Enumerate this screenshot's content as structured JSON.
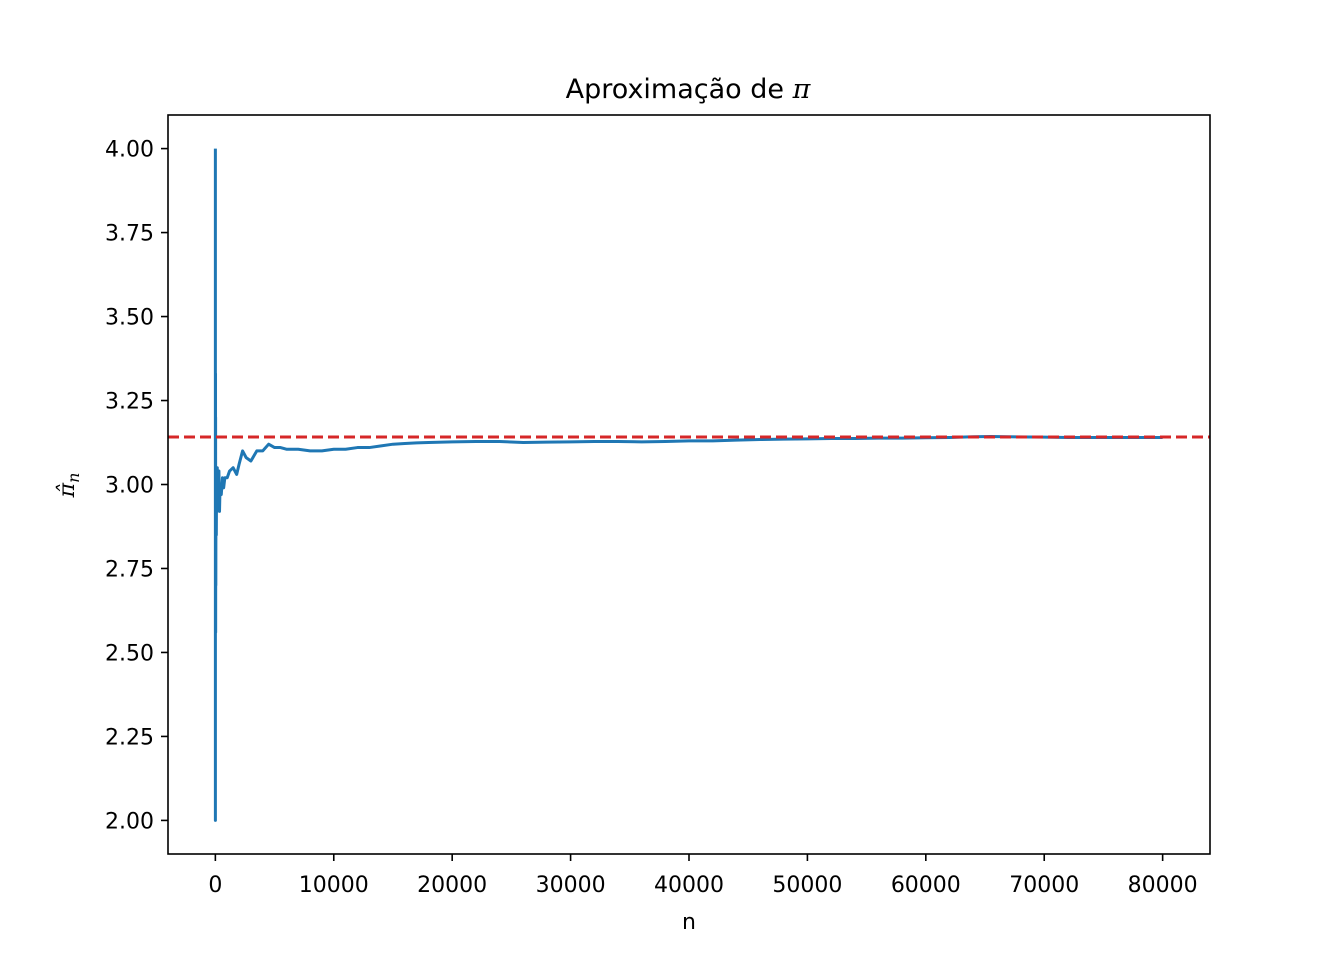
{
  "chart_data": {
    "type": "line",
    "title_prefix": "Aproximação de ",
    "title_symbol": "π",
    "xlabel": "n",
    "ylabel_base": "π̂",
    "ylabel_sub": "n",
    "xlim": [
      -4000,
      84000
    ],
    "ylim": [
      1.9,
      4.1
    ],
    "x_ticks": [
      0,
      10000,
      20000,
      30000,
      40000,
      50000,
      60000,
      70000,
      80000
    ],
    "x_tick_labels": [
      "0",
      "10000",
      "20000",
      "30000",
      "40000",
      "50000",
      "60000",
      "70000",
      "80000"
    ],
    "y_ticks": [
      2.0,
      2.25,
      2.5,
      2.75,
      3.0,
      3.25,
      3.5,
      3.75,
      4.0
    ],
    "y_tick_labels": [
      "2.00",
      "2.25",
      "2.50",
      "2.75",
      "3.00",
      "3.25",
      "3.50",
      "3.75",
      "4.00"
    ],
    "grid": false,
    "reference_line": {
      "y": 3.14159,
      "color": "#d62728",
      "style": "dashed"
    },
    "series": [
      {
        "color": "#1f77b4",
        "x": [
          1,
          2,
          3,
          4,
          5,
          6,
          8,
          10,
          12,
          15,
          20,
          25,
          30,
          40,
          50,
          60,
          80,
          100,
          130,
          160,
          200,
          250,
          300,
          350,
          400,
          500,
          600,
          700,
          800,
          1000,
          1200,
          1500,
          1800,
          2000,
          2300,
          2600,
          3000,
          3500,
          4000,
          4500,
          5000,
          5500,
          6000,
          7000,
          8000,
          9000,
          10000,
          11000,
          12000,
          13000,
          14000,
          15000,
          16000,
          17000,
          18000,
          20000,
          22000,
          24000,
          26000,
          28000,
          30000,
          32000,
          34000,
          36000,
          38000,
          40000,
          42000,
          44000,
          46000,
          48000,
          50000,
          52000,
          54000,
          56000,
          58000,
          60000,
          62000,
          64000,
          65500,
          67000,
          70000,
          72000,
          75000,
          78000,
          80000
        ],
        "y": [
          4.0,
          2.0,
          2.67,
          3.0,
          3.2,
          2.67,
          3.0,
          2.8,
          3.33,
          2.93,
          3.2,
          2.56,
          2.93,
          2.7,
          3.04,
          2.87,
          2.85,
          3.0,
          2.92,
          3.05,
          2.98,
          2.97,
          3.04,
          2.92,
          3.0,
          2.97,
          3.02,
          2.99,
          3.02,
          3.02,
          3.04,
          3.05,
          3.03,
          3.06,
          3.1,
          3.08,
          3.07,
          3.1,
          3.1,
          3.12,
          3.11,
          3.11,
          3.105,
          3.105,
          3.1,
          3.1,
          3.105,
          3.105,
          3.11,
          3.11,
          3.115,
          3.12,
          3.122,
          3.124,
          3.125,
          3.127,
          3.128,
          3.128,
          3.125,
          3.126,
          3.127,
          3.128,
          3.128,
          3.127,
          3.128,
          3.13,
          3.13,
          3.132,
          3.134,
          3.135,
          3.136,
          3.137,
          3.137,
          3.138,
          3.138,
          3.139,
          3.14,
          3.142,
          3.143,
          3.142,
          3.141,
          3.14,
          3.14,
          3.14,
          3.14
        ]
      }
    ]
  }
}
